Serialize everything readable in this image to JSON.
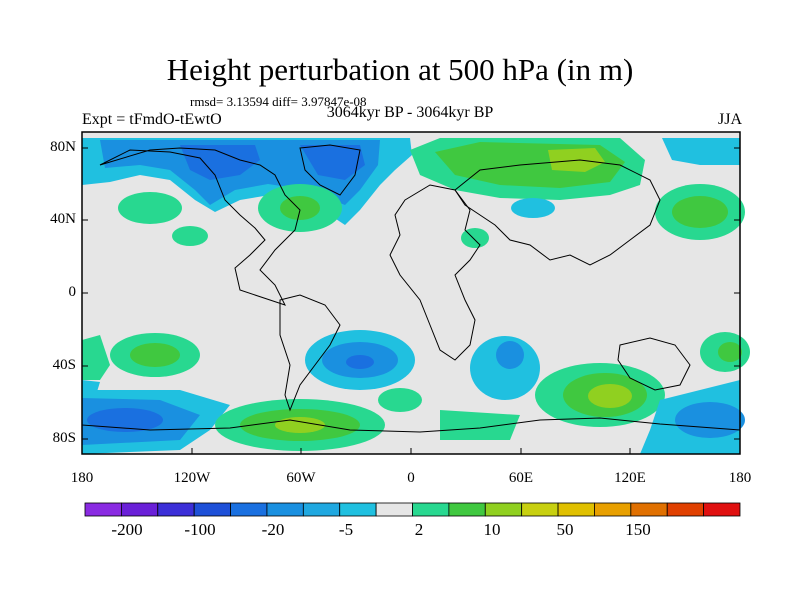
{
  "title": "Height perturbation at 500 hPa (in m)",
  "stats": "rmsd= 3.13594 diff= 3.97847e-08",
  "experiment": "Expt = tFmdO-tEwtO",
  "period": "3064kyr BP - 3064kyr BP",
  "season": "JJA",
  "y_ticks": [
    "80N",
    "40N",
    "0",
    "40S",
    "80S"
  ],
  "x_ticks": [
    "180",
    "120W",
    "60W",
    "0",
    "60E",
    "120E",
    "180"
  ],
  "colorbar": {
    "labels": [
      "-200",
      "-100",
      "-20",
      "-5",
      "2",
      "10",
      "50",
      "150"
    ],
    "colors": [
      "#8a2be2",
      "#6a20d8",
      "#3c2fd8",
      "#1e50d8",
      "#1a70e0",
      "#1a90e0",
      "#20a8e0",
      "#20c0e0",
      "#e6e6e6",
      "#28d890",
      "#40c840",
      "#90d020",
      "#c8d010",
      "#e0c000",
      "#e8a000",
      "#e07000",
      "#e04000",
      "#e01010"
    ]
  },
  "map_colors": {
    "background": "#e6e6e6",
    "positive_1": "#28d890",
    "positive_2": "#40c840",
    "positive_3": "#90d020",
    "positive_4": "#c8d010",
    "negative_1": "#20c0e0",
    "negative_2": "#1a90e0",
    "negative_3": "#1a70e0",
    "negative_4": "#1e50d8"
  }
}
